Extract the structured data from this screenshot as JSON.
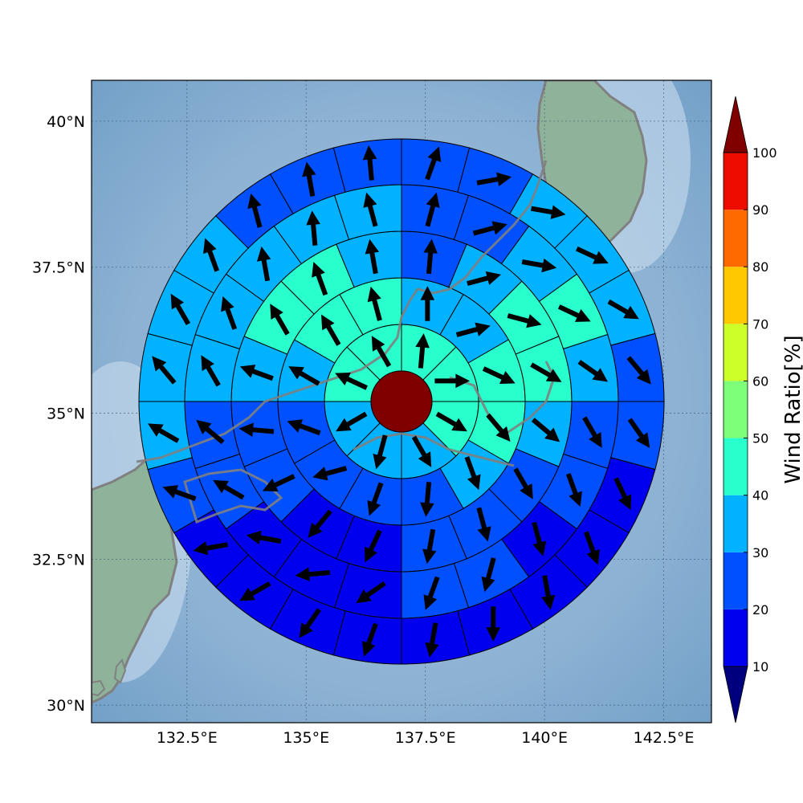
{
  "map": {
    "lon_range": [
      130.5,
      143.5
    ],
    "lat_range": [
      29.7,
      40.7
    ],
    "lon_ticks": [
      {
        "value": 132.5,
        "label": "132.5°E"
      },
      {
        "value": 135.0,
        "label": "135°E"
      },
      {
        "value": 137.5,
        "label": "137.5°E"
      },
      {
        "value": 140.0,
        "label": "140°E"
      },
      {
        "value": 142.5,
        "label": "142.5°E"
      }
    ],
    "lat_ticks": [
      {
        "value": 30.0,
        "label": "30°N"
      },
      {
        "value": 32.5,
        "label": "32.5°N"
      },
      {
        "value": 35.0,
        "label": "35°N"
      },
      {
        "value": 37.5,
        "label": "37.5°N"
      },
      {
        "value": 40.0,
        "label": "40°N"
      }
    ],
    "grid": true,
    "center": {
      "lon": 137.0,
      "lat": 35.2
    },
    "center_color": "#800000",
    "ocean_color": "#8fb4d4",
    "land_color": "#8fb39a",
    "coast_color": "#808080"
  },
  "colorbar": {
    "label": "Wind Ratio[%]",
    "ticks": [
      "10",
      "20",
      "30",
      "40",
      "50",
      "60",
      "70",
      "80",
      "90",
      "100"
    ],
    "levels": [
      10,
      20,
      30,
      40,
      50,
      60,
      70,
      80,
      90,
      100
    ],
    "colors": [
      "#0000ee",
      "#0050ff",
      "#00b2ff",
      "#28ffcd",
      "#7dff7a",
      "#cdff28",
      "#ffc800",
      "#ff6a00",
      "#ee0c00"
    ],
    "under_color": "#00007f",
    "over_color": "#800000",
    "extend": "both"
  },
  "chart_data": {
    "type": "heatmap",
    "description": "",
    "rings": [
      {
        "sectors": 8,
        "ratio": [
          40,
          40,
          40,
          30,
          30,
          30,
          40,
          40
        ],
        "wind_dir_deg": [
          5,
          90,
          120,
          150,
          195,
          240,
          295,
          330
        ]
      },
      {
        "sectors": 12,
        "ratio": [
          30,
          30,
          40,
          40,
          30,
          20,
          20,
          20,
          20,
          30,
          40,
          40
        ],
        "wind_dir_deg": [
          0,
          75,
          115,
          140,
          160,
          185,
          200,
          255,
          290,
          300,
          330,
          345
        ]
      },
      {
        "sectors": 16,
        "ratio": [
          20,
          30,
          40,
          40,
          30,
          20,
          20,
          20,
          10,
          10,
          20,
          20,
          30,
          40,
          40,
          30
        ],
        "wind_dir_deg": [
          5,
          75,
          105,
          120,
          130,
          150,
          165,
          190,
          205,
          220,
          245,
          275,
          290,
          330,
          340,
          350
        ]
      },
      {
        "sectors": 20,
        "ratio": [
          20,
          20,
          30,
          40,
          30,
          20,
          20,
          10,
          20,
          20,
          10,
          10,
          10,
          20,
          20,
          30,
          30,
          30,
          30,
          30
        ],
        "wind_dir_deg": [
          15,
          75,
          100,
          115,
          125,
          150,
          160,
          165,
          195,
          200,
          235,
          265,
          280,
          300,
          310,
          330,
          340,
          350,
          355,
          345
        ]
      },
      {
        "sectors": 24,
        "ratio": [
          20,
          20,
          30,
          30,
          30,
          20,
          20,
          10,
          10,
          10,
          10,
          10,
          10,
          10,
          10,
          10,
          20,
          30,
          30,
          30,
          30,
          20,
          20,
          20
        ],
        "wind_dir_deg": [
          20,
          80,
          100,
          115,
          120,
          140,
          145,
          155,
          160,
          170,
          180,
          190,
          200,
          215,
          240,
          260,
          290,
          300,
          320,
          330,
          340,
          345,
          350,
          355
        ]
      }
    ]
  }
}
